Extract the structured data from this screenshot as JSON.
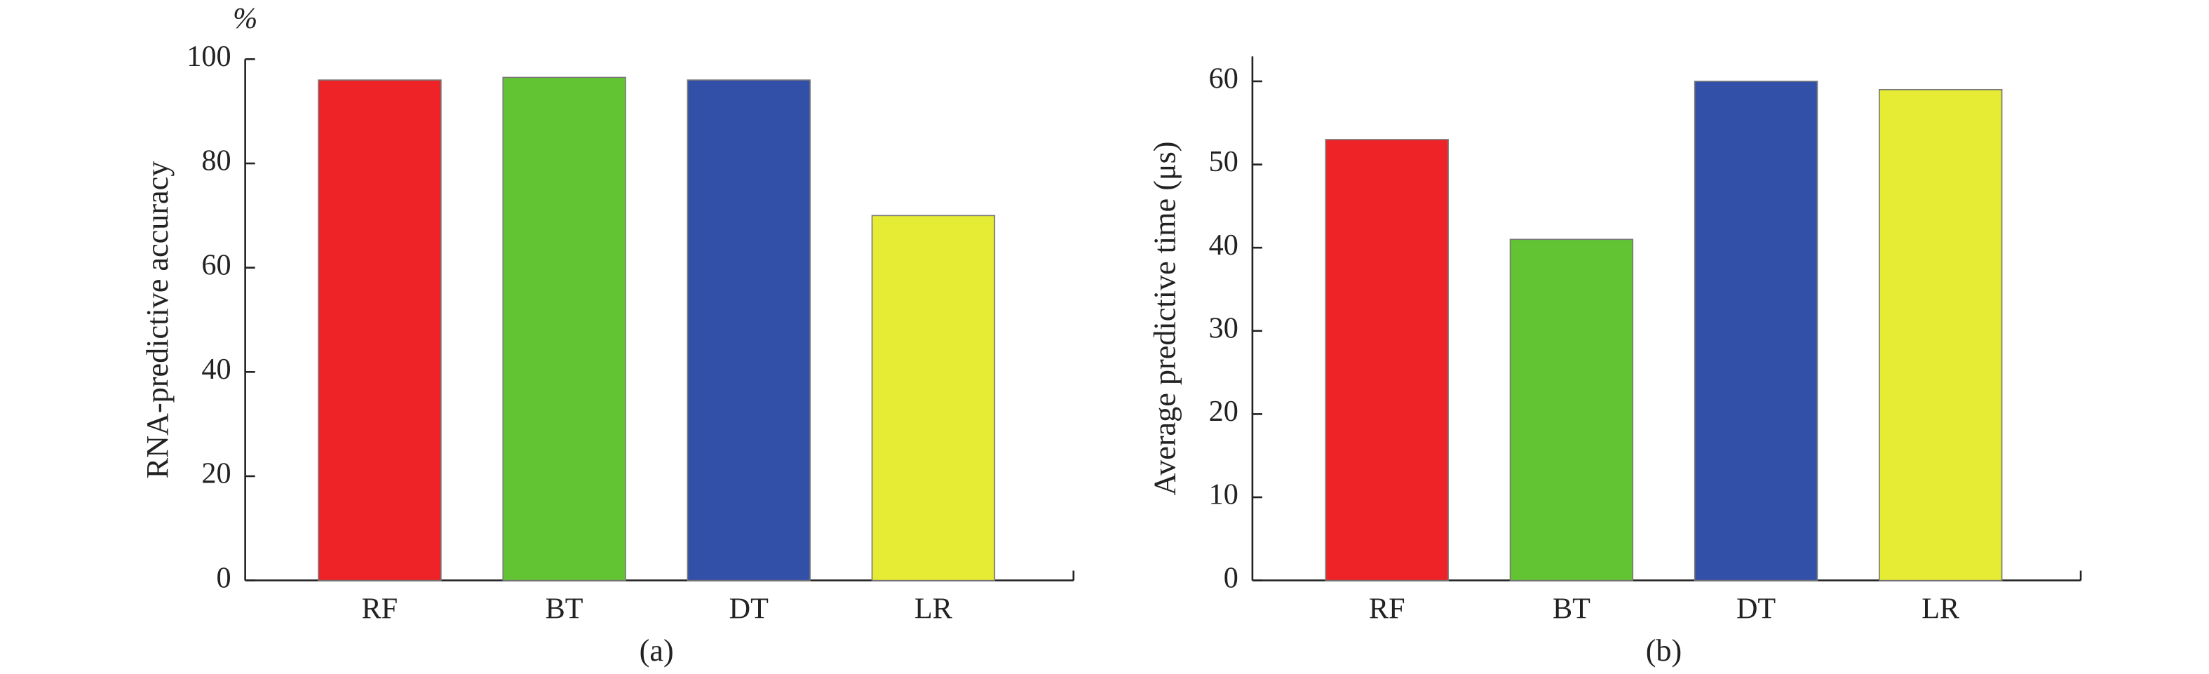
{
  "chart_data": [
    {
      "type": "bar",
      "caption": "(a)",
      "y_unit": "%",
      "ylabel": "RNA-predictive accuracy",
      "categories": [
        "RF",
        "BT",
        "DT",
        "LR"
      ],
      "values": [
        96,
        96.5,
        96,
        70
      ],
      "colors": [
        "#ee2328",
        "#62c433",
        "#3350a9",
        "#e5ec33"
      ],
      "ylim": [
        0,
        100
      ],
      "yticks": [
        0,
        20,
        40,
        60,
        80,
        100
      ]
    },
    {
      "type": "bar",
      "caption": "(b)",
      "ylabel": "Average predictive time (μs)",
      "categories": [
        "RF",
        "BT",
        "DT",
        "LR"
      ],
      "values": [
        53,
        41,
        60,
        59
      ],
      "colors": [
        "#ee2328",
        "#62c433",
        "#3350a9",
        "#e5ec33"
      ],
      "ylim": [
        0,
        63
      ],
      "yticks": [
        0,
        10,
        20,
        30,
        40,
        50,
        60
      ]
    }
  ]
}
